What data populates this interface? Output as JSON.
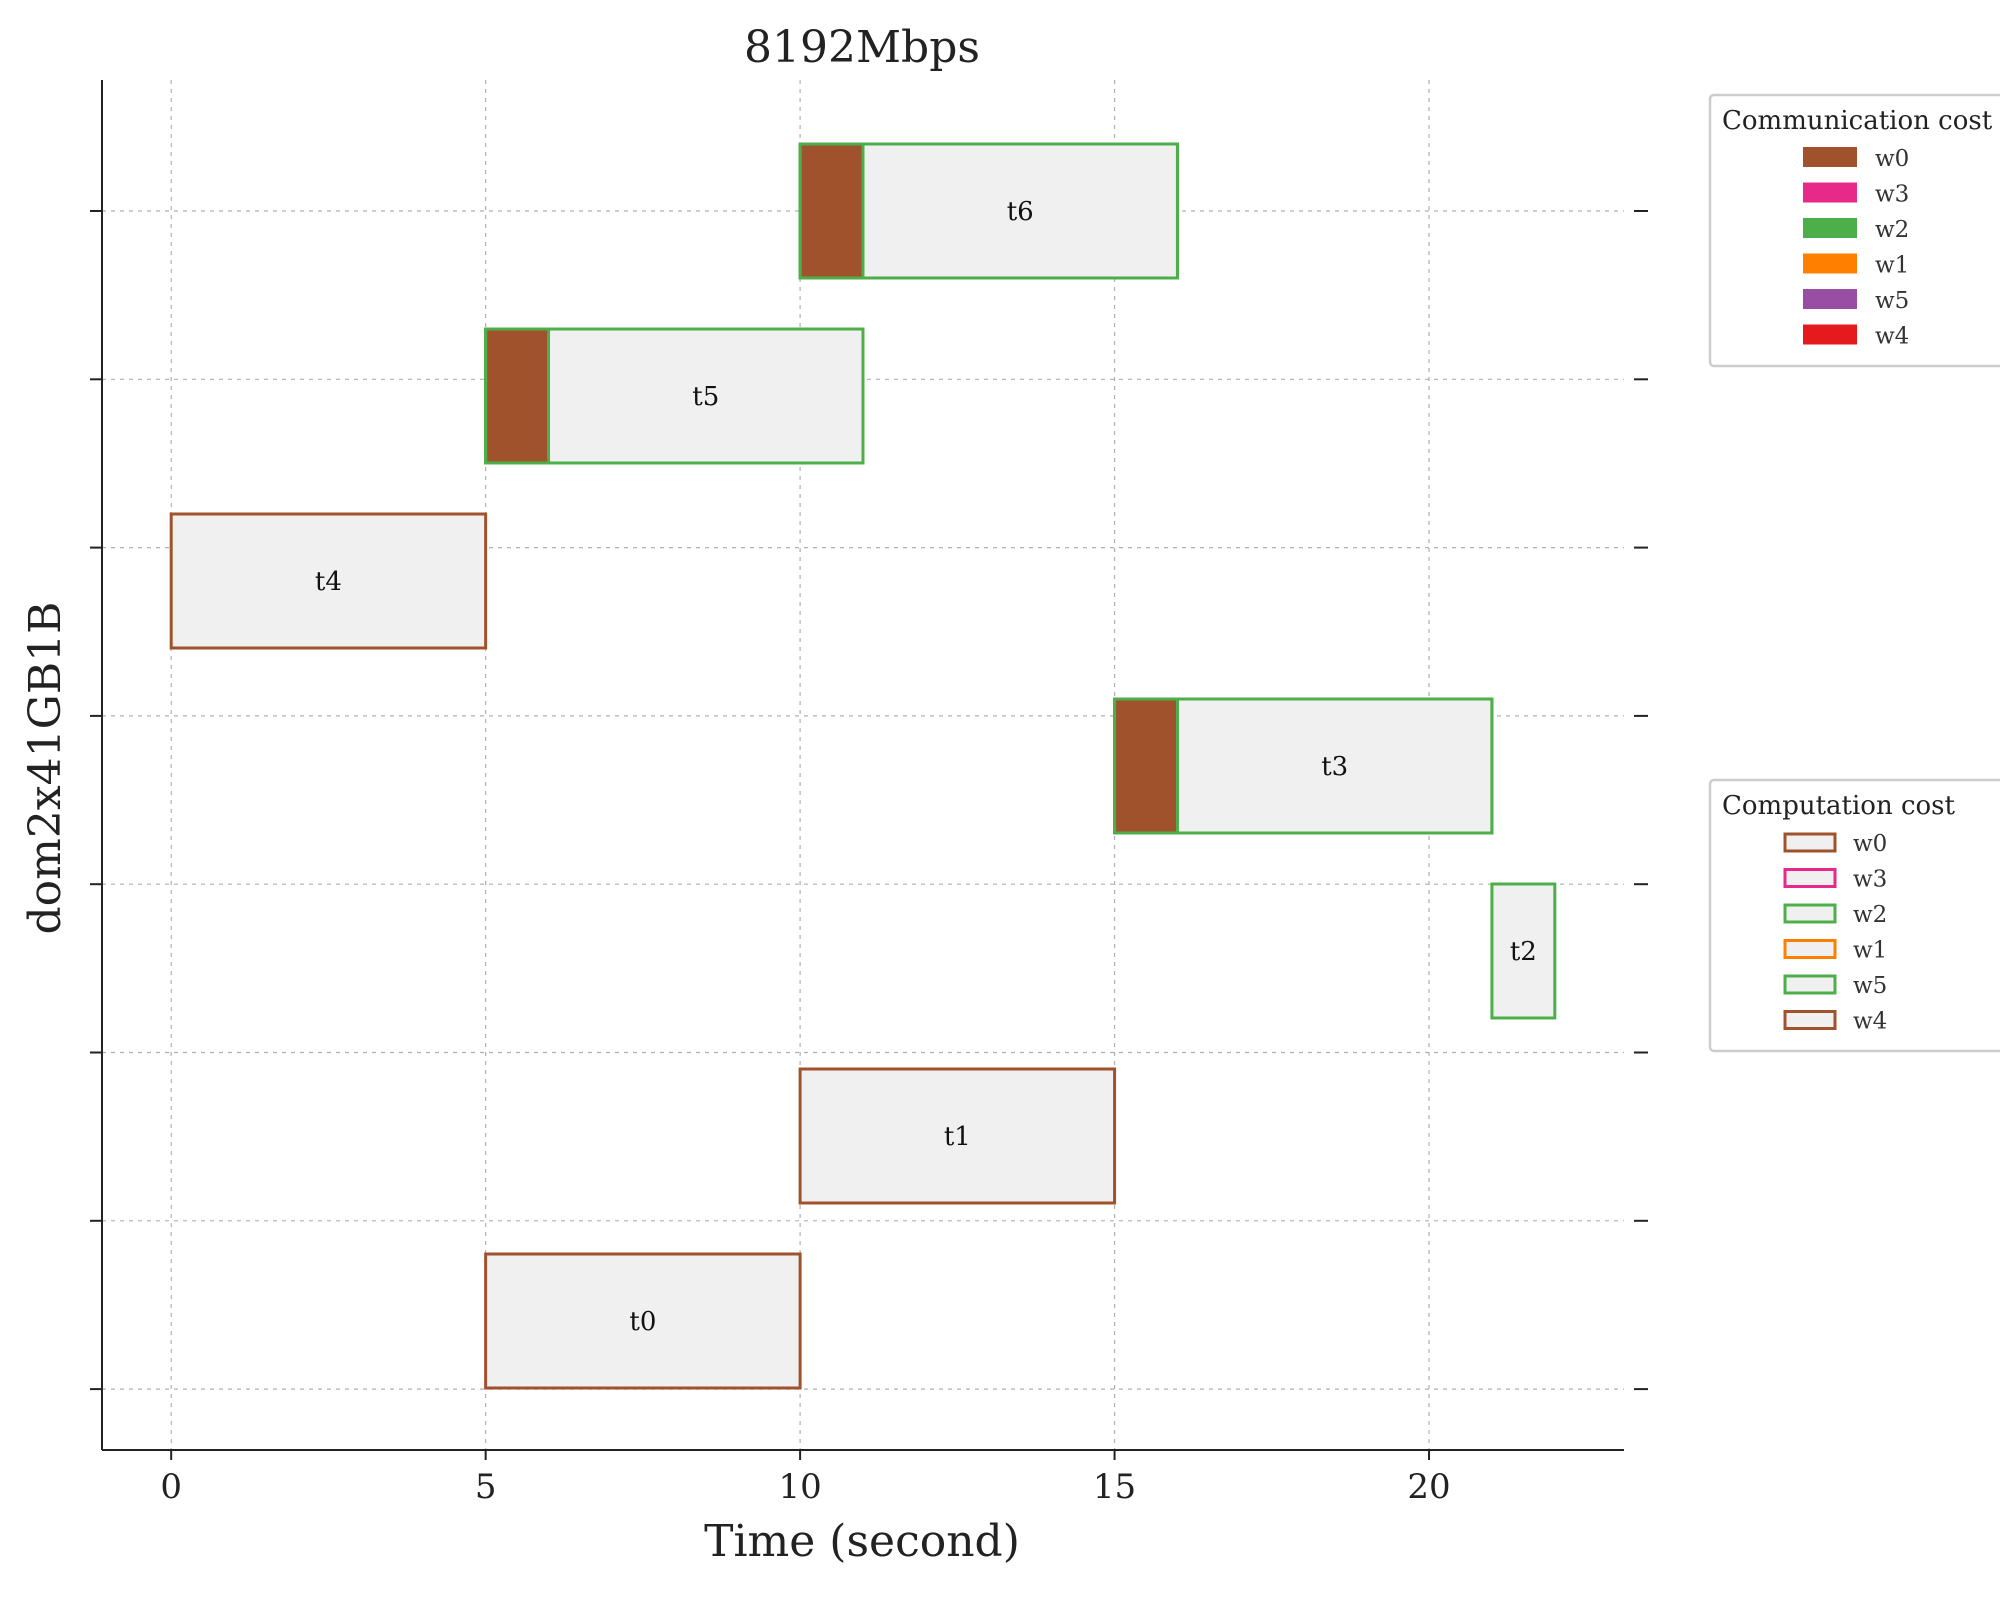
{
  "chart_data": {
    "type": "gantt",
    "title": "8192Mbps",
    "xlabel": "Time (second)",
    "ylabel": "dom2x41GB1B",
    "xlim": [
      -1.1,
      23.1
    ],
    "xticks": [
      0,
      5,
      10,
      15,
      20
    ],
    "grid": true,
    "tasks": [
      {
        "name": "t0",
        "comp_start": 5,
        "comp_end": 10,
        "comm_duration": 0,
        "comm_worker": "",
        "comp_worker": "w0"
      },
      {
        "name": "t1",
        "comp_start": 10,
        "comp_end": 15,
        "comm_duration": 0,
        "comm_worker": "",
        "comp_worker": "w0"
      },
      {
        "name": "t2",
        "comp_start": 21,
        "comp_end": 22,
        "comm_duration": 0,
        "comm_worker": "",
        "comp_worker": "w2"
      },
      {
        "name": "t3",
        "comp_start": 15,
        "comp_end": 21,
        "comm_duration": 1,
        "comm_worker": "w0",
        "comp_worker": "w2"
      },
      {
        "name": "t4",
        "comp_start": 0,
        "comp_end": 5,
        "comm_duration": 0,
        "comm_worker": "",
        "comp_worker": "w0"
      },
      {
        "name": "t5",
        "comp_start": 5,
        "comp_end": 11,
        "comm_duration": 1,
        "comm_worker": "w0",
        "comp_worker": "w2"
      },
      {
        "name": "t6",
        "comp_start": 10,
        "comp_end": 16,
        "comm_duration": 1,
        "comm_worker": "w0",
        "comp_worker": "w2"
      }
    ],
    "legend_communication": {
      "title": "Communication cost",
      "placement": "upper-right-outside",
      "entries": [
        {
          "label": "w0",
          "color": "#a0522d"
        },
        {
          "label": "w3",
          "color": "#e7298a"
        },
        {
          "label": "w2",
          "color": "#4daf4a"
        },
        {
          "label": "w1",
          "color": "#ff7f00"
        },
        {
          "label": "w5",
          "color": "#984ea3"
        },
        {
          "label": "w4",
          "color": "#e41a1c"
        }
      ]
    },
    "legend_computation": {
      "title": "Computation cost",
      "placement": "center-right-outside",
      "entries": [
        {
          "label": "w0",
          "color": "#a0522d"
        },
        {
          "label": "w3",
          "color": "#e7298a"
        },
        {
          "label": "w2",
          "color": "#4daf4a"
        },
        {
          "label": "w1",
          "color": "#ff7f00"
        },
        {
          "label": "w5",
          "color": "#4daf4a"
        },
        {
          "label": "w4",
          "color": "#a0522d"
        }
      ]
    },
    "colors": {
      "task_fill": "#f0f0f0",
      "comm_fill": "#a0522d",
      "w0": "#a0522d",
      "w2": "#4daf4a"
    }
  }
}
